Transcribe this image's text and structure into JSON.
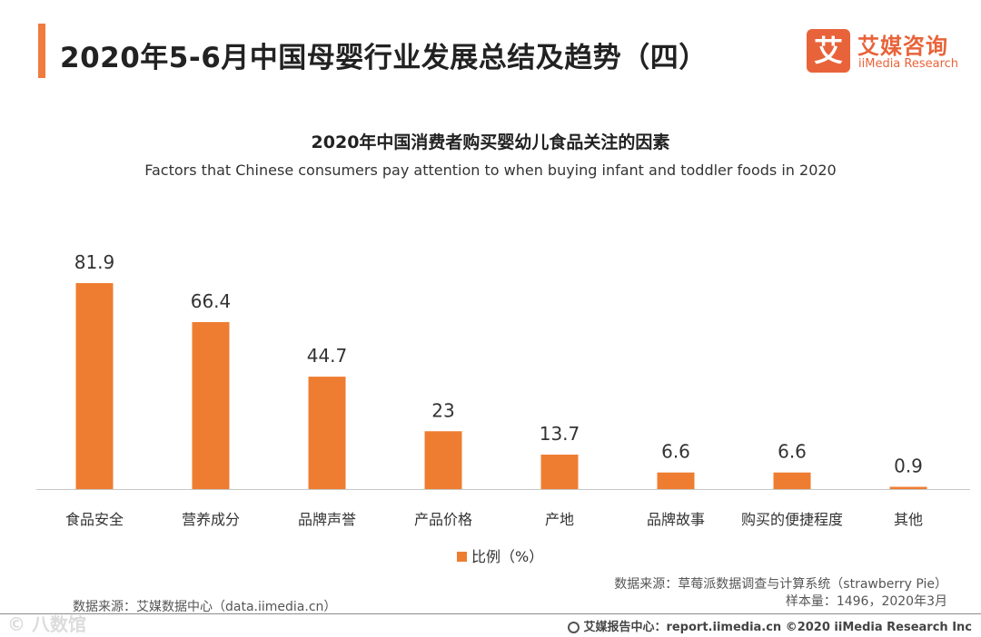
{
  "header": {
    "title": "2020年5-6月中国母婴行业发展总结及趋势（四）",
    "logo_mark": "艾",
    "logo_cn": "艾媒咨询",
    "logo_en": "iiMedia Research"
  },
  "colors": {
    "accent": "#f07b3f",
    "bar": "#ee7d31",
    "brand": "#e8633a"
  },
  "chart_data": {
    "type": "bar",
    "title": "2020年中国消费者购买婴幼儿食品关注的因素",
    "subtitle": "Factors that Chinese consumers pay attention to when buying infant and toddler foods in 2020",
    "categories": [
      "食品安全",
      "营养成分",
      "品牌声誉",
      "产品价格",
      "产地",
      "品牌故事",
      "购买的便捷程度",
      "其他"
    ],
    "values": [
      81.9,
      66.4,
      44.7,
      23,
      13.7,
      6.6,
      6.6,
      0.9
    ],
    "value_labels": [
      "81.9",
      "66.4",
      "44.7",
      "23",
      "13.7",
      "6.6",
      "6.6",
      "0.9"
    ],
    "series_name": "比例（%）",
    "ylim": [
      0,
      100
    ],
    "grid": false,
    "legend": "bottom-center"
  },
  "source": {
    "line1": "数据来源：草莓派数据调查与计算系统（strawberry Pie）",
    "line2": "样本量：1496，2020年3月",
    "left": "数据来源：艾媒数据中心（data.iimedia.cn）"
  },
  "footer": {
    "text": "艾媒报告中心：report.iimedia.cn  ©2020  iiMedia Research  Inc"
  },
  "watermark": "© 八数馆"
}
